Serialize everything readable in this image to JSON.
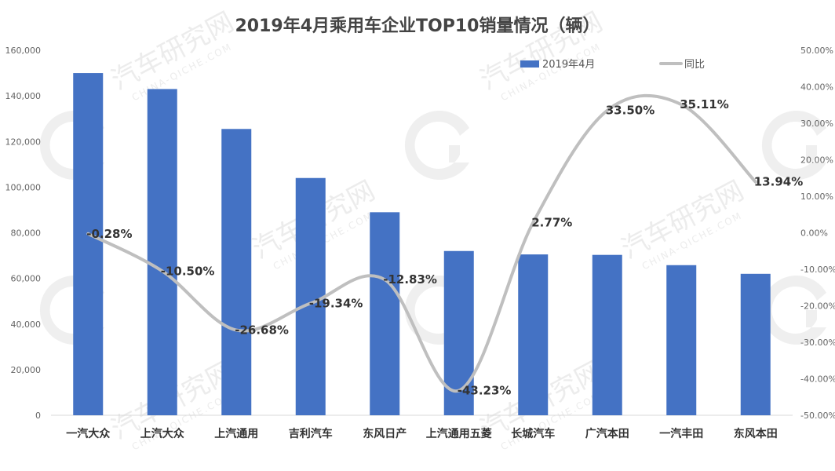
{
  "chart_data": {
    "type": "bar",
    "title": "2019年4月乘用车企业TOP10销量情况（辆）",
    "categories": [
      "一汽大众",
      "上汽大众",
      "上汽通用",
      "吉利汽车",
      "东风日产",
      "上汽通用五菱",
      "长城汽车",
      "广汽本田",
      "一汽丰田",
      "东风本田"
    ],
    "series": [
      {
        "name": "2019年4月",
        "type": "bar",
        "axis": "left",
        "color": "#4472c4",
        "values": [
          150000,
          143000,
          125500,
          104000,
          89000,
          72000,
          70500,
          70300,
          65800,
          62000
        ]
      },
      {
        "name": "同比",
        "type": "line",
        "axis": "right",
        "color": "#bfbfbf",
        "values": [
          -0.28,
          -10.5,
          -26.68,
          -19.34,
          -12.83,
          -43.23,
          2.77,
          33.5,
          35.11,
          13.94
        ],
        "labels": [
          "-0.28%",
          "-10.50%",
          "-26.68%",
          "-19.34%",
          "-12.83%",
          "-43.23%",
          "2.77%",
          "33.50%",
          "35.11%",
          "13.94%"
        ]
      }
    ],
    "y_left": {
      "min": 0,
      "max": 160000,
      "step": 20000,
      "ticks": [
        "0",
        "20,000",
        "40,000",
        "60,000",
        "80,000",
        "100,000",
        "120,000",
        "140,000",
        "160,000"
      ]
    },
    "y_right": {
      "min": -50,
      "max": 50,
      "step": 10,
      "ticks": [
        "-50.00%",
        "-40.00%",
        "-30.00%",
        "-20.00%",
        "-10.00%",
        "0.00%",
        "10.00%",
        "20.00%",
        "30.00%",
        "40.00%",
        "50.00%"
      ]
    },
    "legend": {
      "position": "top-right",
      "items": [
        "2019年4月",
        "同比"
      ]
    },
    "grid": false,
    "xlabel": "",
    "ylabel": ""
  },
  "watermark": {
    "text": "汽车研究网",
    "subtext": "CHINA-QICHE.COM"
  }
}
